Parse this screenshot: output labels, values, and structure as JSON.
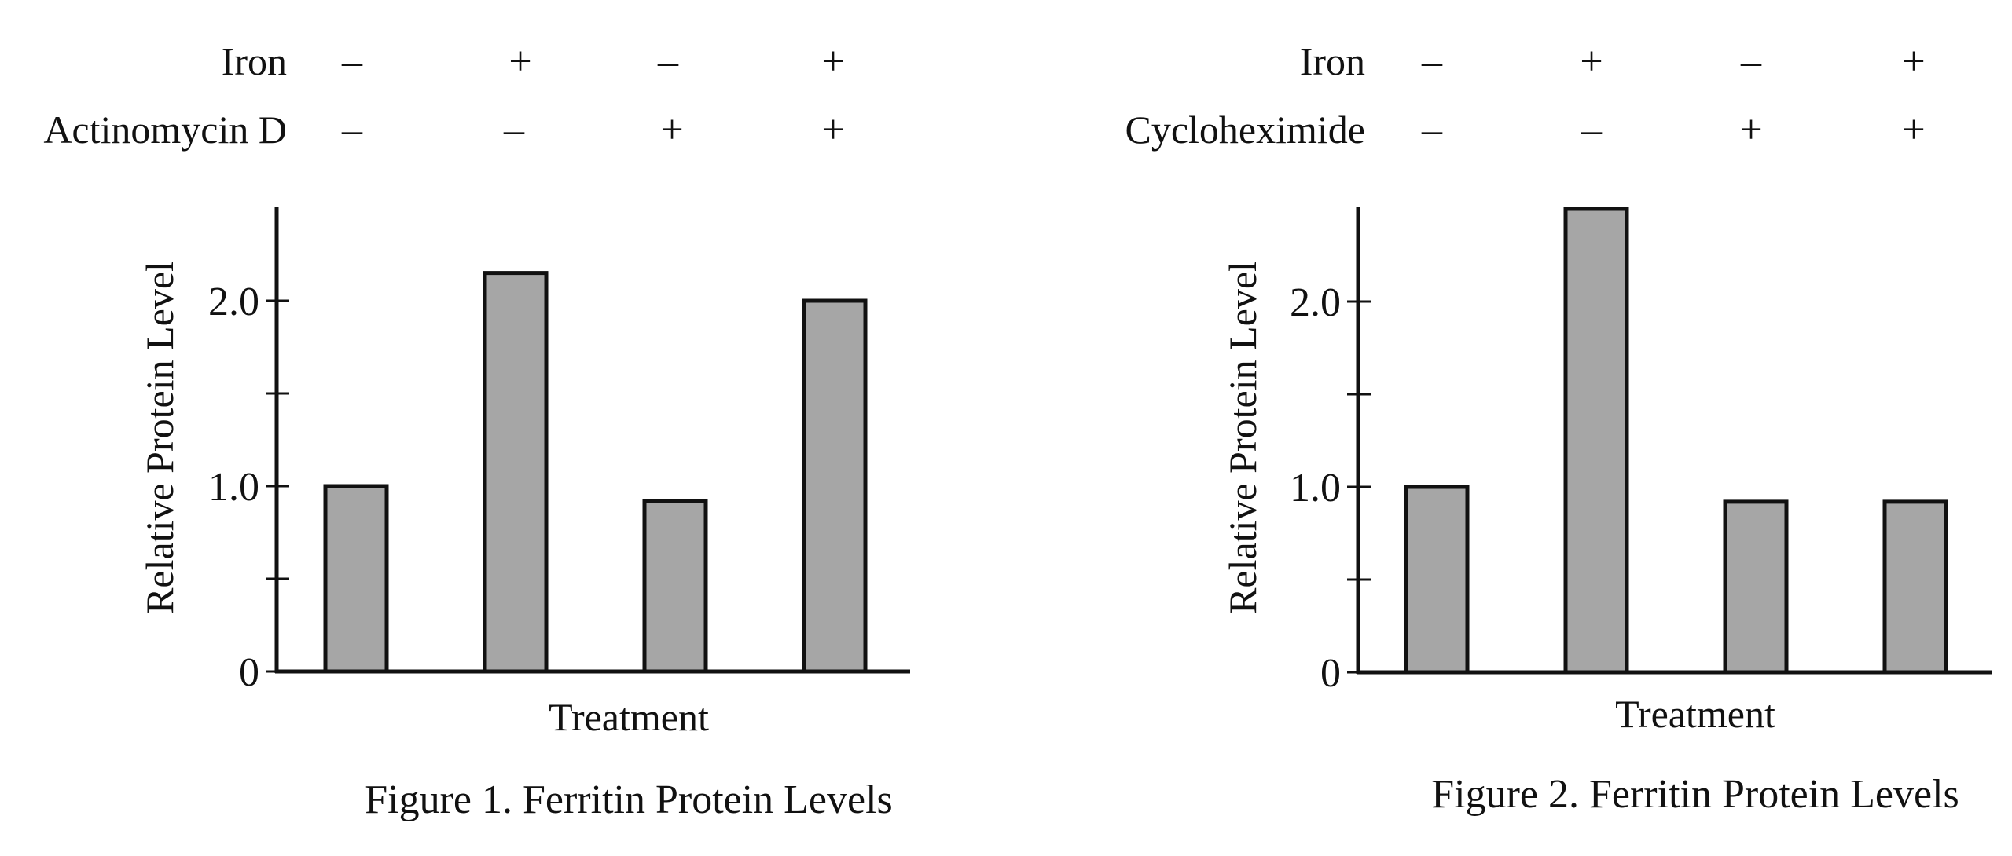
{
  "chart_data": [
    {
      "type": "bar",
      "title": "Figure 1. Ferritin Protein Levels",
      "xlabel": "Treatment",
      "ylabel": "Relative Protein Level",
      "ylim": [
        0,
        2.5
      ],
      "ytick_labels": [
        "0",
        "1.0",
        "2.0"
      ],
      "grid": false,
      "treatment_rows": [
        {
          "label": "Iron",
          "signs": [
            "–",
            "+",
            "–",
            "+"
          ]
        },
        {
          "label": "Actinomycin D",
          "signs": [
            "–",
            "–",
            "+",
            "+"
          ]
        }
      ],
      "categories": [
        "– / –",
        "+ / –",
        "– / +",
        "+ / +"
      ],
      "values": [
        1.0,
        2.15,
        0.92,
        2.0
      ],
      "bar_color": "#a6a6a6"
    },
    {
      "type": "bar",
      "title": "Figure 2. Ferritin Protein Levels",
      "xlabel": "Treatment",
      "ylabel": "Relative Protein Level",
      "ylim": [
        0,
        2.5
      ],
      "ytick_labels": [
        "0",
        "1.0",
        "2.0"
      ],
      "grid": false,
      "treatment_rows": [
        {
          "label": "Iron",
          "signs": [
            "–",
            "+",
            "–",
            "+"
          ]
        },
        {
          "label": "Cycloheximide",
          "signs": [
            "–",
            "–",
            "+",
            "+"
          ]
        }
      ],
      "categories": [
        "– / –",
        "+ / –",
        "– / +",
        "+ / +"
      ],
      "values": [
        1.0,
        2.5,
        0.92,
        0.92
      ],
      "bar_color": "#a6a6a6"
    }
  ]
}
